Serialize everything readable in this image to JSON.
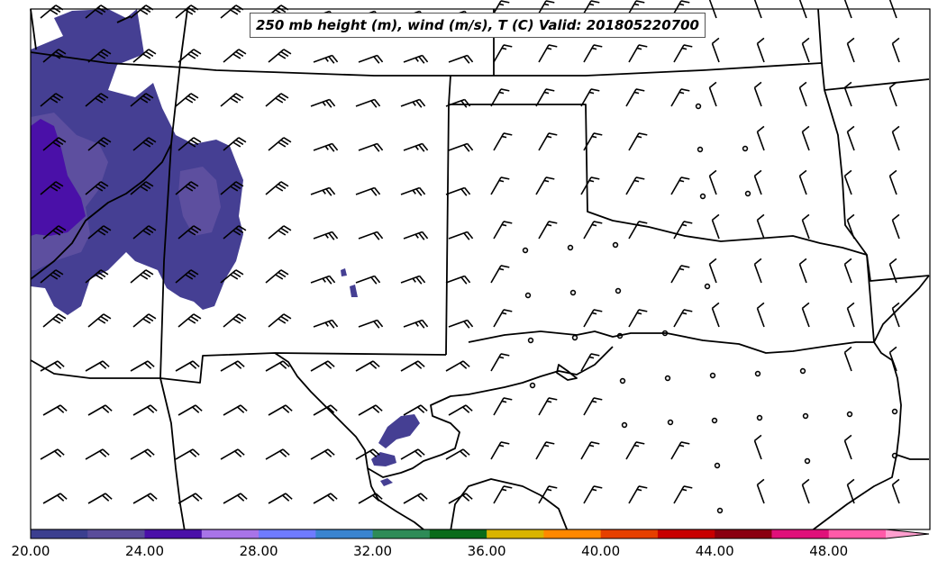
{
  "title": "250 mb height (m), wind (m/s), T (C) Valid: 201805220700",
  "colorbar": {
    "labels": [
      "20.00",
      "24.00",
      "28.00",
      "32.00",
      "36.00",
      "40.00",
      "44.00",
      "48.00"
    ],
    "colors": [
      "#3b3f8f",
      "#5a4c9a",
      "#4a10a8",
      "#a874e8",
      "#6f7bff",
      "#3a84cf",
      "#2e8b57",
      "#0a6b1a",
      "#d9b400",
      "#ff8800",
      "#e64000",
      "#c80000",
      "#8a0010",
      "#e0107a",
      "#ff5aa8",
      "#ff9fcf"
    ]
  },
  "colors": {
    "fill_dark": "#453f93",
    "fill_mid": "#5d4f9f",
    "fill_core": "#4a10a8",
    "fill_core_light": "#6f52c2",
    "boundary": "#000000"
  }
}
